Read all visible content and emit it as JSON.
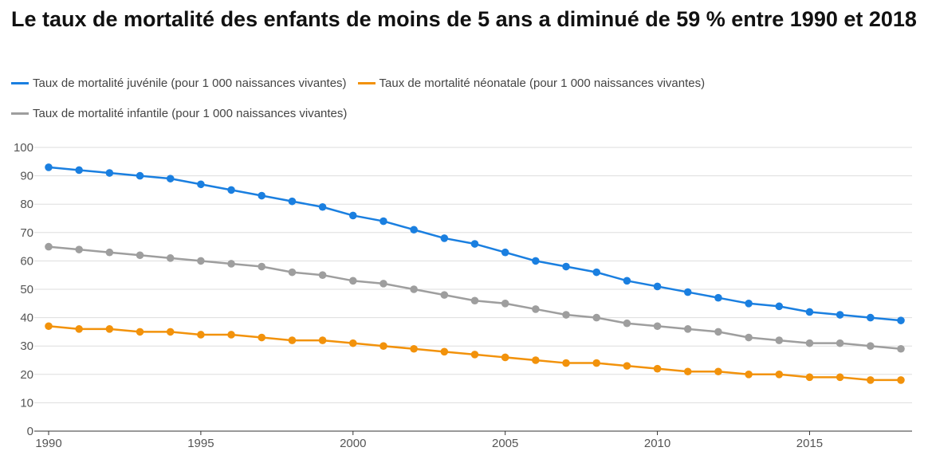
{
  "chart_data": {
    "type": "line",
    "title": "Le taux de mortalité des enfants de moins de 5 ans a diminué de 59 % entre 1990 et 2018",
    "xlabel": "",
    "ylabel": "",
    "xlim": [
      1990,
      2018
    ],
    "ylim": [
      0,
      100
    ],
    "yticks": [
      "0",
      "10",
      "20",
      "30",
      "40",
      "50",
      "60",
      "70",
      "80",
      "90",
      "100"
    ],
    "xticks": [
      "1990",
      "1995",
      "2000",
      "2005",
      "2010",
      "2015"
    ],
    "grid": true,
    "legend": "top",
    "x": [
      1990,
      1991,
      1992,
      1993,
      1994,
      1995,
      1996,
      1997,
      1998,
      1999,
      2000,
      2001,
      2002,
      2003,
      2004,
      2005,
      2006,
      2007,
      2008,
      2009,
      2010,
      2011,
      2012,
      2013,
      2014,
      2015,
      2016,
      2017,
      2018
    ],
    "series": [
      {
        "name": "Taux de mortalité juvénile (pour 1 000 naissances vivantes)",
        "color": "#1a7fe0",
        "values": [
          93,
          92,
          91,
          90,
          89,
          87,
          85,
          83,
          81,
          79,
          76,
          74,
          71,
          68,
          66,
          63,
          60,
          58,
          56,
          53,
          51,
          49,
          47,
          45,
          44,
          42,
          41,
          40,
          39
        ]
      },
      {
        "name": "Taux de mortalité néonatale (pour 1 000 naissances vivantes)",
        "color": "#f2920b",
        "values": [
          37,
          36,
          36,
          35,
          35,
          34,
          34,
          33,
          32,
          32,
          31,
          30,
          29,
          28,
          27,
          26,
          25,
          24,
          24,
          23,
          22,
          21,
          21,
          20,
          20,
          19,
          19,
          18,
          18
        ]
      },
      {
        "name": "Taux de mortalité infantile (pour 1 000 naissances vivantes)",
        "color": "#9e9e9e",
        "values": [
          65,
          64,
          63,
          62,
          61,
          60,
          59,
          58,
          56,
          55,
          53,
          52,
          50,
          48,
          46,
          45,
          43,
          41,
          40,
          38,
          37,
          36,
          35,
          33,
          32,
          31,
          31,
          30,
          29
        ]
      }
    ]
  }
}
